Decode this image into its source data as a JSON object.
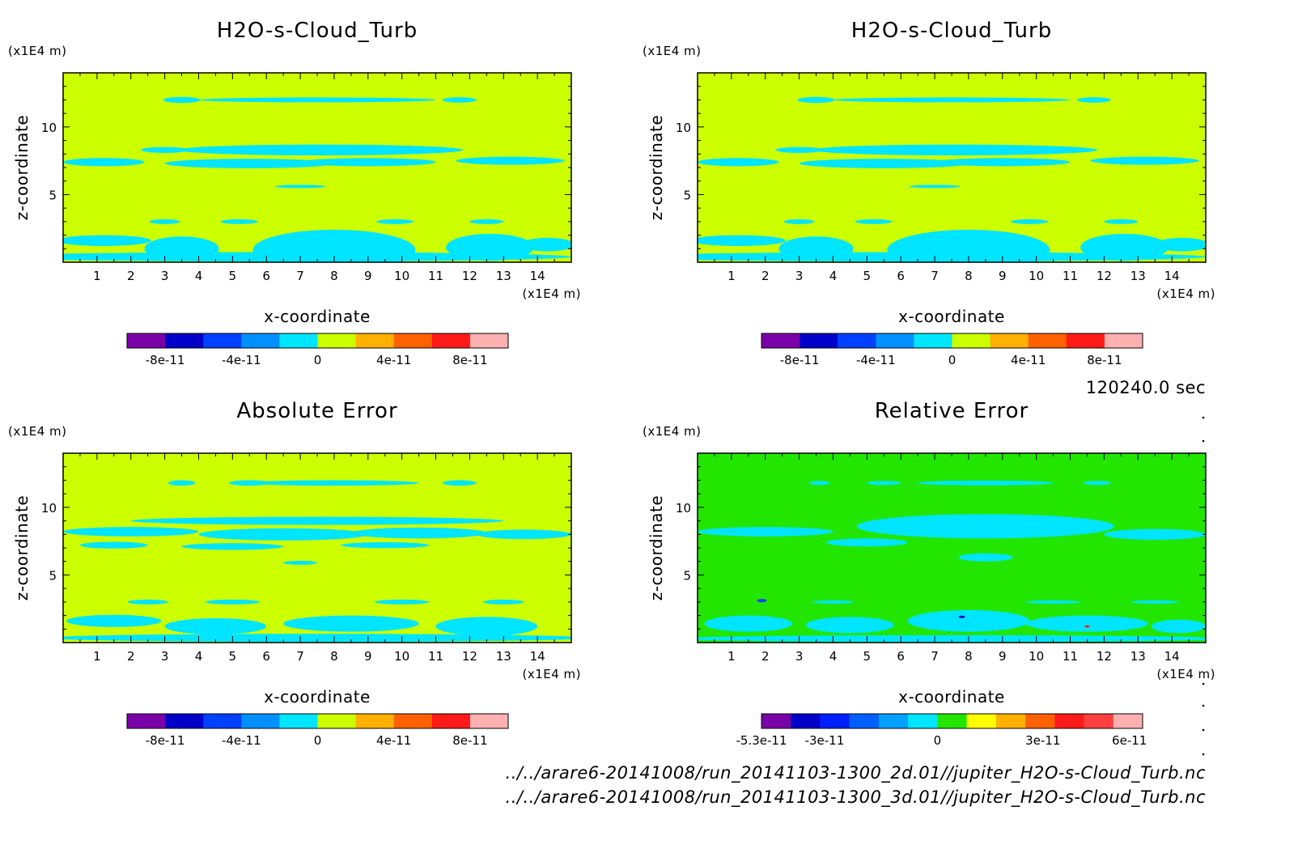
{
  "chart_data": [
    {
      "type": "heatmap",
      "title": "H2O-s-Cloud_Turb",
      "xlabel": "x-coordinate",
      "ylabel": "z-coordinate",
      "x_unit": "(x1E4 m)",
      "z_unit": "(x1E4 m)",
      "x_ticks": [
        "1",
        "2",
        "3",
        "4",
        "5",
        "6",
        "7",
        "8",
        "9",
        "10",
        "11",
        "12",
        "13",
        "14"
      ],
      "z_ticks": [
        "5",
        "10"
      ],
      "xlim": [
        0,
        15
      ],
      "zlim": [
        0,
        14
      ],
      "background": "#ccff00",
      "patch_color": "#00e5ff",
      "colorbar": {
        "colors": [
          "#7a00a8",
          "#0000c8",
          "#0040ff",
          "#0090ff",
          "#00e5ff",
          "#ccff00",
          "#ffb000",
          "#ff6000",
          "#ff1a1a",
          "#ffb0b0"
        ],
        "labels": [
          "-8e-11",
          "-4e-11",
          "0",
          "4e-11",
          "8e-11"
        ]
      }
    },
    {
      "type": "heatmap",
      "title": "H2O-s-Cloud_Turb",
      "xlabel": "x-coordinate",
      "ylabel": "z-coordinate",
      "x_unit": "(x1E4 m)",
      "z_unit": "(x1E4 m)",
      "x_ticks": [
        "1",
        "2",
        "3",
        "4",
        "5",
        "6",
        "7",
        "8",
        "9",
        "10",
        "11",
        "12",
        "13",
        "14"
      ],
      "z_ticks": [
        "5",
        "10"
      ],
      "xlim": [
        0,
        15
      ],
      "zlim": [
        0,
        14
      ],
      "background": "#ccff00",
      "patch_color": "#00e5ff",
      "colorbar": {
        "colors": [
          "#7a00a8",
          "#0000c8",
          "#0040ff",
          "#0090ff",
          "#00e5ff",
          "#ccff00",
          "#ffb000",
          "#ff6000",
          "#ff1a1a",
          "#ffb0b0"
        ],
        "labels": [
          "-8e-11",
          "-4e-11",
          "0",
          "4e-11",
          "8e-11"
        ]
      }
    },
    {
      "type": "heatmap",
      "title": "Absolute Error",
      "xlabel": "x-coordinate",
      "ylabel": "z-coordinate",
      "x_unit": "(x1E4 m)",
      "z_unit": "(x1E4 m)",
      "x_ticks": [
        "1",
        "2",
        "3",
        "4",
        "5",
        "6",
        "7",
        "8",
        "9",
        "10",
        "11",
        "12",
        "13",
        "14"
      ],
      "z_ticks": [
        "5",
        "10"
      ],
      "xlim": [
        0,
        15
      ],
      "zlim": [
        0,
        14
      ],
      "background": "#ccff00",
      "patch_color": "#00e5ff",
      "colorbar": {
        "colors": [
          "#7a00a8",
          "#0000c8",
          "#0040ff",
          "#0090ff",
          "#00e5ff",
          "#ccff00",
          "#ffb000",
          "#ff6000",
          "#ff1a1a",
          "#ffb0b0"
        ],
        "labels": [
          "-8e-11",
          "-4e-11",
          "0",
          "4e-11",
          "8e-11"
        ]
      }
    },
    {
      "type": "heatmap",
      "title": "Relative Error",
      "xlabel": "x-coordinate",
      "ylabel": "z-coordinate",
      "x_unit": "(x1E4 m)",
      "z_unit": "(x1E4 m)",
      "x_ticks": [
        "1",
        "2",
        "3",
        "4",
        "5",
        "6",
        "7",
        "8",
        "9",
        "10",
        "11",
        "12",
        "13",
        "14"
      ],
      "z_ticks": [
        "5",
        "10"
      ],
      "xlim": [
        0,
        15
      ],
      "zlim": [
        0,
        14
      ],
      "background": "#22e600",
      "patch_color": "#00e5ff",
      "colorbar": {
        "colors": [
          "#7a00a8",
          "#0000c8",
          "#0020ff",
          "#0060ff",
          "#00a0ff",
          "#00e5ff",
          "#22e600",
          "#ffff00",
          "#ffb000",
          "#ff6000",
          "#ff1a1a",
          "#ff4040",
          "#ffb0b0"
        ],
        "labels": [
          "-5.3e-11",
          "-3e-11",
          "0",
          "3e-11",
          "6e-11"
        ]
      }
    }
  ],
  "time_label": "120240.0 sec",
  "files": [
    "../../arare6-20141008/run_20141103-1300_2d.01//jupiter_H2O-s-Cloud_Turb.nc",
    "../../arare6-20141008/run_20141103-1300_3d.01//jupiter_H2O-s-Cloud_Turb.nc"
  ]
}
